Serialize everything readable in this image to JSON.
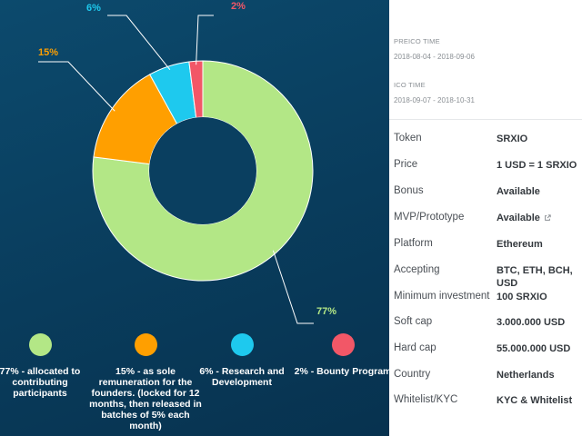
{
  "chart_data": {
    "type": "pie",
    "variant": "donut",
    "slices": [
      {
        "label": "77%",
        "value": 77,
        "color": "#b3e786"
      },
      {
        "label": "15%",
        "value": 15,
        "color": "#ff9f00"
      },
      {
        "label": "6%",
        "value": 6,
        "color": "#1ec9ee"
      },
      {
        "label": "2%",
        "value": 2,
        "color": "#f25767"
      }
    ],
    "legend": [
      {
        "text": "77% - allocated to contributing participants",
        "color": "#b3e786"
      },
      {
        "text": "15% - as sole remuneration for the founders. (locked for 12 months, then released in batches of 5% each month)",
        "color": "#ff9f00"
      },
      {
        "text": "6% - Research and Development",
        "color": "#1ec9ee"
      },
      {
        "text": "2% - Bounty Program",
        "color": "#f25767"
      }
    ],
    "legend_placement": "bottom"
  },
  "ico_times": {
    "preico_label": "PREICO TIME",
    "preico_value": "2018-08-04 - 2018-09-06",
    "ico_label": "ICO TIME",
    "ico_value": "2018-09-07 - 2018-10-31"
  },
  "details": [
    {
      "label": "Token",
      "value": "SRXIO"
    },
    {
      "label": "Price",
      "value": "1 USD = 1 SRXIO"
    },
    {
      "label": "Bonus",
      "value": "Available"
    },
    {
      "label": "MVP/Prototype",
      "value": "Available",
      "icon": "external-link-icon"
    },
    {
      "label": "Platform",
      "value": "Ethereum"
    },
    {
      "label": "Accepting",
      "value": "BTC, ETH, BCH, USD"
    },
    {
      "label": "Minimum investment",
      "value": "100 SRXIO"
    },
    {
      "label": "Soft cap",
      "value": "3.000.000 USD"
    },
    {
      "label": "Hard cap",
      "value": "55.000.000 USD"
    },
    {
      "label": "Country",
      "value": "Netherlands"
    },
    {
      "label": "Whitelist/KYC",
      "value": "KYC & Whitelist"
    }
  ]
}
